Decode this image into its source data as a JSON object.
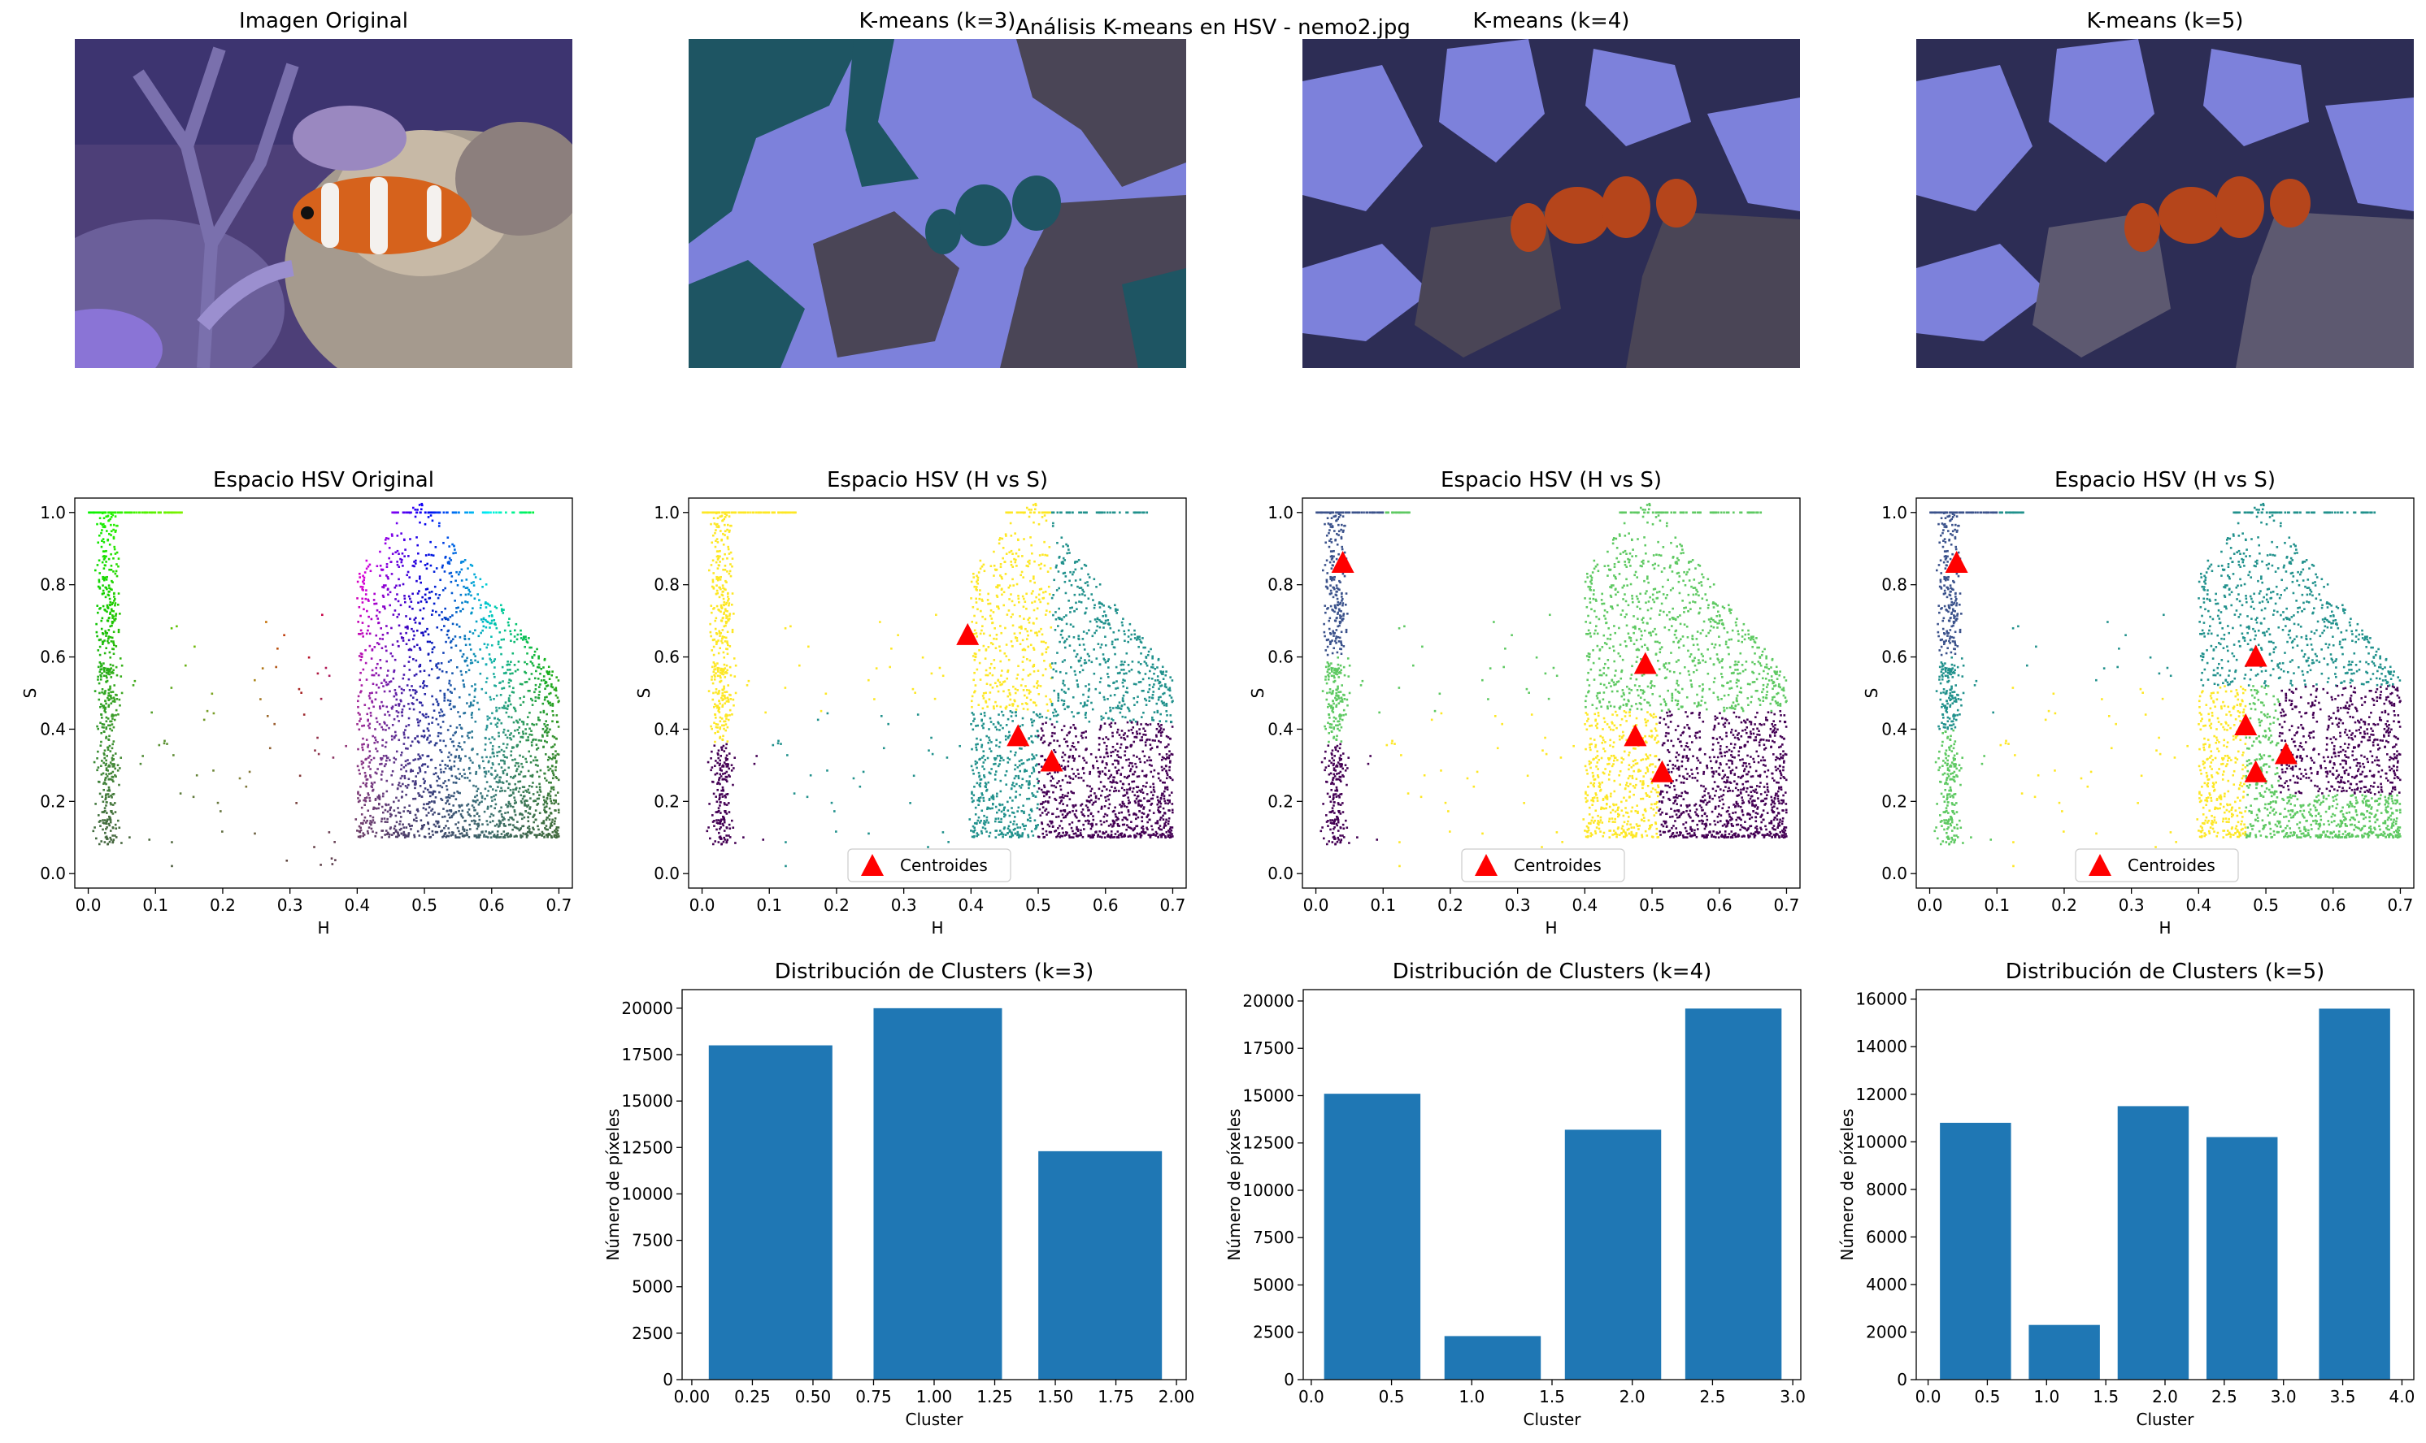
{
  "figure": {
    "suptitle": "Análisis K-means en HSV - nemo2.jpg",
    "colors": {
      "bar": "#1f77b4",
      "centroid": "#ff0000",
      "kmeans_palette": [
        "#1e5563",
        "#7d81db",
        "#4a4556",
        "#2d2d55",
        "#b5451b",
        "#5d5970"
      ],
      "viridis": [
        "#440154",
        "#3b528b",
        "#21918c",
        "#5ec962",
        "#fde725"
      ]
    }
  },
  "images": [
    {
      "title": "Imagen Original",
      "kind": "photo",
      "icon": "clownfish-photo"
    },
    {
      "title": "K-means (k=3)",
      "kind": "segmented",
      "k": 3
    },
    {
      "title": "K-means (k=4)",
      "kind": "segmented",
      "k": 4
    },
    {
      "title": "K-means (k=5)",
      "kind": "segmented",
      "k": 5
    }
  ],
  "chart_data": [
    {
      "type": "scatter",
      "title": "Espacio HSV Original",
      "xlabel": "H",
      "ylabel": "S",
      "xlim": [
        -0.02,
        0.72
      ],
      "ylim": [
        -0.04,
        1.04
      ],
      "xticks": [
        "0.0",
        "0.1",
        "0.2",
        "0.3",
        "0.4",
        "0.5",
        "0.6",
        "0.7"
      ],
      "yticks": [
        "0.0",
        "0.2",
        "0.4",
        "0.6",
        "0.8",
        "1.0"
      ],
      "coloring": "hsv",
      "point_groups": [
        {
          "name": "warm hues (orange/red)",
          "h_range": [
            0.0,
            0.08
          ],
          "s_range": [
            0.05,
            1.0
          ]
        },
        {
          "name": "blue/violet hues",
          "h_range": [
            0.38,
            0.7
          ],
          "s_range": [
            0.1,
            1.0
          ]
        }
      ]
    },
    {
      "type": "scatter",
      "title": "Espacio HSV (H vs S)",
      "xlabel": "H",
      "ylabel": "S",
      "xlim": [
        -0.02,
        0.72
      ],
      "ylim": [
        -0.04,
        1.04
      ],
      "xticks": [
        "0.0",
        "0.1",
        "0.2",
        "0.3",
        "0.4",
        "0.5",
        "0.6",
        "0.7"
      ],
      "yticks": [
        "0.0",
        "0.2",
        "0.4",
        "0.6",
        "0.8",
        "1.0"
      ],
      "k": 3,
      "legend": {
        "label": "Centroides",
        "position": "lower center"
      },
      "centroids": [
        [
          0.395,
          0.66
        ],
        [
          0.47,
          0.38
        ],
        [
          0.52,
          0.31
        ]
      ]
    },
    {
      "type": "scatter",
      "title": "Espacio HSV (H vs S)",
      "xlabel": "H",
      "ylabel": "S",
      "xlim": [
        -0.02,
        0.72
      ],
      "ylim": [
        -0.04,
        1.04
      ],
      "xticks": [
        "0.0",
        "0.1",
        "0.2",
        "0.3",
        "0.4",
        "0.5",
        "0.6",
        "0.7"
      ],
      "yticks": [
        "0.0",
        "0.2",
        "0.4",
        "0.6",
        "0.8",
        "1.0"
      ],
      "k": 4,
      "legend": {
        "label": "Centroides",
        "position": "lower center"
      },
      "centroids": [
        [
          0.04,
          0.86
        ],
        [
          0.49,
          0.58
        ],
        [
          0.475,
          0.38
        ],
        [
          0.515,
          0.28
        ]
      ]
    },
    {
      "type": "scatter",
      "title": "Espacio HSV (H vs S)",
      "xlabel": "H",
      "ylabel": "S",
      "xlim": [
        -0.02,
        0.72
      ],
      "ylim": [
        -0.04,
        1.04
      ],
      "xticks": [
        "0.0",
        "0.1",
        "0.2",
        "0.3",
        "0.4",
        "0.5",
        "0.6",
        "0.7"
      ],
      "yticks": [
        "0.0",
        "0.2",
        "0.4",
        "0.6",
        "0.8",
        "1.0"
      ],
      "k": 5,
      "legend": {
        "label": "Centroides",
        "position": "lower center"
      },
      "centroids": [
        [
          0.04,
          0.86
        ],
        [
          0.485,
          0.6
        ],
        [
          0.47,
          0.41
        ],
        [
          0.53,
          0.33
        ],
        [
          0.485,
          0.28
        ]
      ]
    },
    {
      "type": "bar",
      "title": "Distribución de Clusters (k=3)",
      "xlabel": "Cluster",
      "ylabel": "Número de píxeles",
      "xlim": [
        -0.04,
        2.04
      ],
      "ylim": [
        0,
        21000
      ],
      "xticks": [
        0,
        0.25,
        0.5,
        0.75,
        1.0,
        1.25,
        1.5,
        1.75,
        2.0
      ],
      "xtick_labels": [
        "0.00",
        "0.25",
        "0.50",
        "0.75",
        "1.00",
        "1.25",
        "1.50",
        "1.75",
        "2.00"
      ],
      "yticks": [
        0,
        2500,
        5000,
        7500,
        10000,
        12500,
        15000,
        17500,
        20000
      ],
      "ytick_labels": [
        "0",
        "2500",
        "5000",
        "7500",
        "10000",
        "12500",
        "15000",
        "17500",
        "20000"
      ],
      "categories": [
        0,
        1,
        2
      ],
      "values": [
        18000,
        20000,
        12300
      ],
      "bar_spans": [
        [
          0.07,
          0.58
        ],
        [
          0.75,
          1.28
        ],
        [
          1.43,
          1.94
        ]
      ]
    },
    {
      "type": "bar",
      "title": "Distribución de Clusters (k=4)",
      "xlabel": "Cluster",
      "ylabel": "Número de píxeles",
      "xlim": [
        -0.05,
        3.05
      ],
      "ylim": [
        0,
        20600
      ],
      "xticks": [
        0,
        0.5,
        1.0,
        1.5,
        2.0,
        2.5,
        3.0
      ],
      "xtick_labels": [
        "0.0",
        "0.5",
        "1.0",
        "1.5",
        "2.0",
        "2.5",
        "3.0"
      ],
      "yticks": [
        0,
        2500,
        5000,
        7500,
        10000,
        12500,
        15000,
        17500,
        20000
      ],
      "ytick_labels": [
        "0",
        "2500",
        "5000",
        "7500",
        "10000",
        "12500",
        "15000",
        "17500",
        "20000"
      ],
      "categories": [
        0,
        1,
        2,
        3
      ],
      "values": [
        15100,
        2300,
        13200,
        19600
      ],
      "bar_spans": [
        [
          0.08,
          0.68
        ],
        [
          0.83,
          1.43
        ],
        [
          1.58,
          2.18
        ],
        [
          2.33,
          2.93
        ]
      ]
    },
    {
      "type": "bar",
      "title": "Distribución de Clusters (k=5)",
      "xlabel": "Cluster",
      "ylabel": "Número de píxeles",
      "xlim": [
        -0.1,
        4.1
      ],
      "ylim": [
        0,
        16400
      ],
      "xticks": [
        0,
        0.5,
        1.0,
        1.5,
        2.0,
        2.5,
        3.0,
        3.5,
        4.0
      ],
      "xtick_labels": [
        "0.0",
        "0.5",
        "1.0",
        "1.5",
        "2.0",
        "2.5",
        "3.0",
        "3.5",
        "4.0"
      ],
      "yticks": [
        0,
        2000,
        4000,
        6000,
        8000,
        10000,
        12000,
        14000,
        16000
      ],
      "ytick_labels": [
        "0",
        "2000",
        "4000",
        "6000",
        "8000",
        "10000",
        "12000",
        "14000",
        "16000"
      ],
      "categories": [
        0,
        1,
        2,
        3,
        4
      ],
      "values": [
        10800,
        2300,
        11500,
        10200,
        15600
      ],
      "bar_spans": [
        [
          0.1,
          0.7
        ],
        [
          0.85,
          1.45
        ],
        [
          1.6,
          2.2
        ],
        [
          2.35,
          2.95
        ],
        [
          3.3,
          3.9
        ]
      ]
    }
  ]
}
